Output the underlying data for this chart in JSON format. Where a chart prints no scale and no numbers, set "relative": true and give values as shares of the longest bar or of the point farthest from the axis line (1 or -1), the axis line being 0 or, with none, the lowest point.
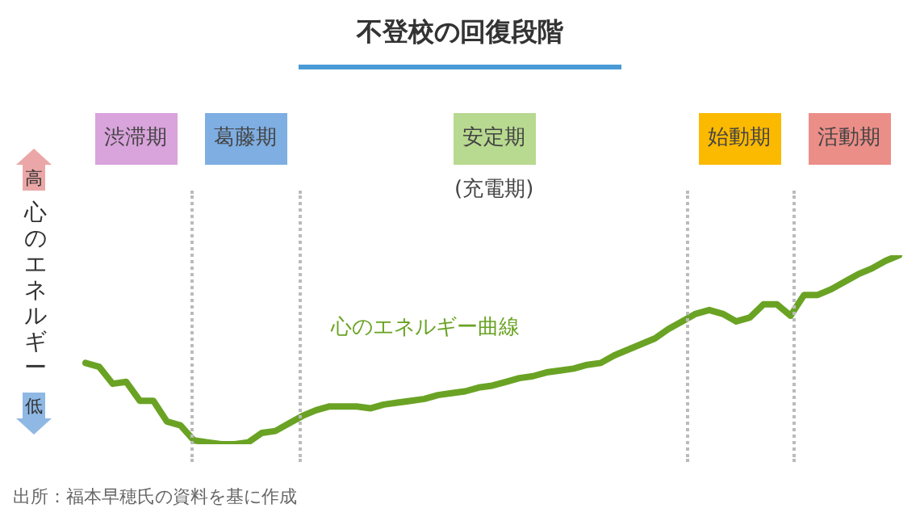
{
  "chart_data": {
    "type": "line",
    "title": "不登校の回復段階",
    "ylabel": "心のエネルギー",
    "relative": true,
    "marker": "none",
    "line_style": "solid",
    "annotations": [
      "高",
      "低",
      "渋滞期",
      "葛藤期",
      "安定期",
      "(充電期)",
      "始動期",
      "活動期",
      "出所：福本早穂氏の資料を基に作成"
    ],
    "categories": [
      null,
      null,
      null,
      null,
      null,
      null,
      null,
      null,
      null,
      null,
      null,
      null,
      null,
      null,
      null,
      null,
      null,
      null,
      null,
      null,
      null,
      null,
      null,
      null,
      null,
      null,
      null,
      null,
      null,
      null,
      null,
      null,
      null,
      null,
      null,
      null,
      null,
      null,
      null,
      null,
      null,
      null,
      null,
      null,
      null,
      null,
      null,
      null,
      null,
      null,
      null,
      null,
      null,
      null,
      null,
      null,
      null,
      null,
      null,
      null,
      null
    ],
    "series": [
      {
        "name": "心のエネルギー曲線",
        "color": "#6aa324",
        "values": [
          0.43,
          0.41,
          0.32,
          0.33,
          0.23,
          0.23,
          0.12,
          0.1,
          0.02,
          0.01,
          0,
          0,
          0.01,
          0.06,
          0.07,
          0.11,
          0.15,
          0.18,
          0.2,
          0.2,
          0.2,
          0.19,
          0.21,
          0.22,
          0.23,
          0.24,
          0.26,
          0.27,
          0.28,
          0.3,
          0.31,
          0.33,
          0.35,
          0.36,
          0.38,
          0.39,
          0.4,
          0.42,
          0.43,
          0.47,
          0.5,
          0.53,
          0.56,
          0.61,
          0.65,
          0.69,
          0.71,
          0.69,
          0.65,
          0.67,
          0.74,
          0.74,
          0.68,
          0.79,
          0.79,
          0.82,
          0.86,
          0.9,
          0.93,
          0.97,
          1
        ]
      }
    ]
  }
}
